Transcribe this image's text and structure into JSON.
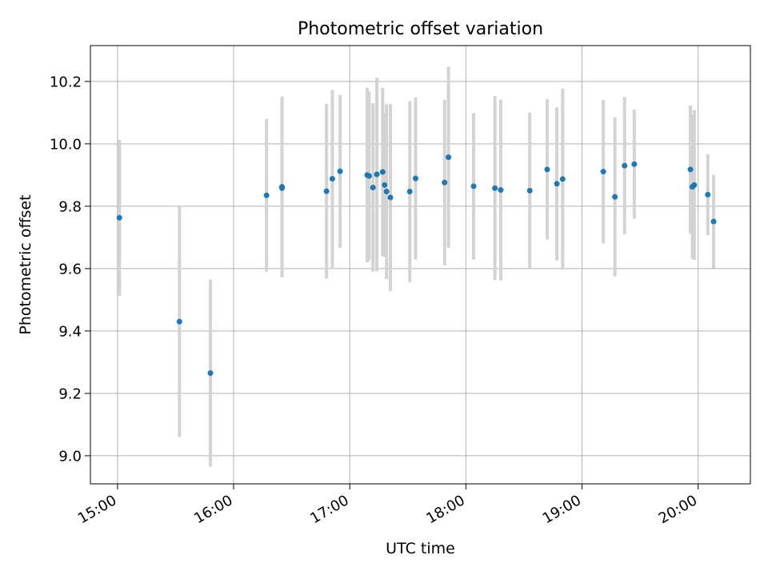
{
  "chart_data": {
    "type": "scatter",
    "title": "Photometric offset variation",
    "xlabel": "UTC time",
    "ylabel": "Photometric offset",
    "x_axis_type": "time",
    "xlim": [
      "14:46",
      "20:27"
    ],
    "ylim": [
      8.91,
      10.315
    ],
    "grid": true,
    "xticks": [
      "15:00",
      "16:00",
      "17:00",
      "18:00",
      "19:00",
      "20:00"
    ],
    "yticks": [
      "9.0",
      "9.2",
      "9.4",
      "9.6",
      "9.8",
      "10.0",
      "10.2"
    ],
    "point_color": "#1f77b4",
    "errorbar_color": "#d3d3d3",
    "series": [
      {
        "x": [
          "15:01",
          "15:32",
          "15:48",
          "16:17",
          "16:25",
          "16:25",
          "16:48",
          "16:51",
          "16:55",
          "17:09",
          "17:10",
          "17:12",
          "17:14",
          "17:17",
          "17:18",
          "17:19",
          "17:21",
          "17:31",
          "17:34",
          "17:49",
          "17:51",
          "18:04",
          "18:15",
          "18:18",
          "18:33",
          "18:42",
          "18:47",
          "18:50",
          "19:11",
          "19:17",
          "19:22",
          "19:27",
          "19:56",
          "19:57",
          "19:58",
          "20:05",
          "20:08"
        ],
        "y": [
          9.763,
          9.43,
          9.265,
          9.835,
          9.858,
          9.862,
          9.848,
          9.888,
          9.912,
          9.9,
          9.897,
          9.86,
          9.902,
          9.91,
          9.868,
          9.847,
          9.828,
          9.847,
          9.889,
          9.876,
          9.957,
          9.864,
          9.858,
          9.852,
          9.85,
          9.918,
          9.872,
          9.887,
          9.911,
          9.83,
          9.93,
          9.935,
          9.918,
          9.862,
          9.868,
          9.837,
          9.751
        ],
        "yerr": [
          0.25,
          0.37,
          0.3,
          0.245,
          0.285,
          0.29,
          0.28,
          0.285,
          0.245,
          0.28,
          0.27,
          0.27,
          0.31,
          0.27,
          0.23,
          0.28,
          0.3,
          0.29,
          0.26,
          0.265,
          0.29,
          0.235,
          0.295,
          0.29,
          0.25,
          0.225,
          0.245,
          0.29,
          0.23,
          0.255,
          0.22,
          0.175,
          0.205,
          0.23,
          0.24,
          0.13,
          0.15
        ]
      }
    ]
  }
}
